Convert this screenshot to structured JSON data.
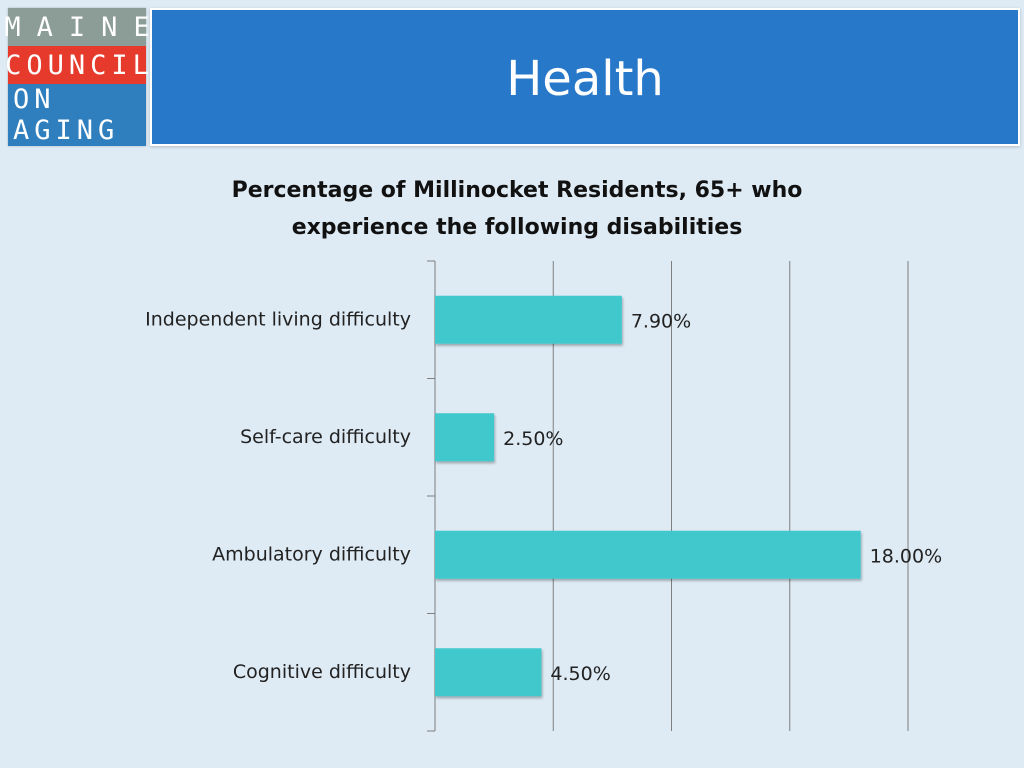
{
  "logo": {
    "line1": "MAINE",
    "line2": "COUNCIL",
    "line3": "ON AGING",
    "colors": {
      "top": "#8c9c96",
      "middle": "#e63a2c",
      "bottom": "#2f7fbe"
    }
  },
  "header": {
    "title": "Health",
    "background": "#2878c9"
  },
  "chart_data": {
    "type": "bar",
    "orientation": "horizontal",
    "title_lines": [
      "Percentage of Millinocket Residents, 65+ who",
      "experience the following disabilities"
    ],
    "categories": [
      "Independent living difficulty",
      "Self-care difficulty",
      "Ambulatory difficulty",
      "Cognitive difficulty"
    ],
    "values": [
      7.9,
      2.5,
      18.0,
      4.5
    ],
    "value_labels": [
      "7.90%",
      "2.50%",
      "18.00%",
      "4.50%"
    ],
    "xlim": [
      0,
      20
    ],
    "gridlines_x": [
      5,
      10,
      15,
      20
    ],
    "grid": true,
    "legend": "none",
    "bar_color": "#40c8cc"
  }
}
